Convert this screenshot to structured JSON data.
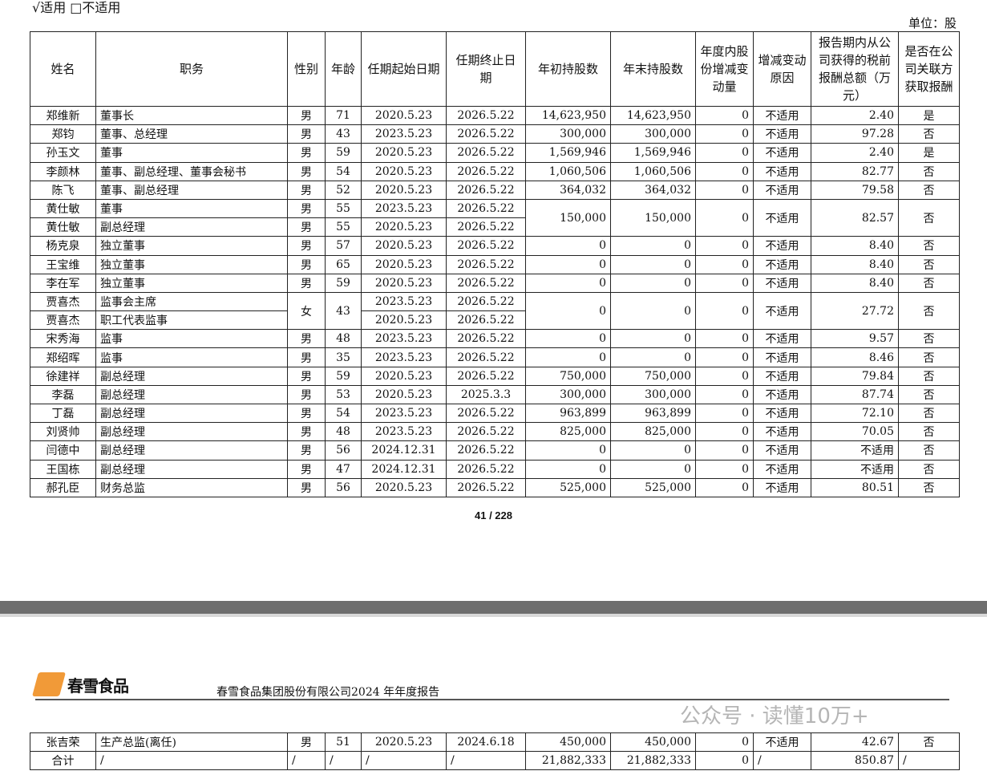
{
  "applicability": "√适用 □不适用",
  "unit": "单位：股",
  "headers": [
    "姓名",
    "职务",
    "性别",
    "年龄",
    "任期起始日期",
    "任期终止日期",
    "年初持股数",
    "年末持股数",
    "年度内股份增减变动量",
    "增减变动原因",
    "报告期内从公司获得的税前报酬总额（万元）",
    "是否在公司关联方获取报酬"
  ],
  "rows": [
    [
      "郑维新",
      "董事长",
      "男",
      "71",
      "2020.5.23",
      "2026.5.22",
      "14,623,950",
      "14,623,950",
      "0",
      "不适用",
      "2.40",
      "是"
    ],
    [
      "郑钧",
      "董事、总经理",
      "男",
      "43",
      "2023.5.23",
      "2026.5.22",
      "300,000",
      "300,000",
      "0",
      "不适用",
      "97.28",
      "否"
    ],
    [
      "孙玉文",
      "董事",
      "男",
      "59",
      "2020.5.23",
      "2026.5.22",
      "1,569,946",
      "1,569,946",
      "0",
      "不适用",
      "2.40",
      "是"
    ],
    [
      "李颜林",
      "董事、副总经理、董事会秘书",
      "男",
      "54",
      "2020.5.23",
      "2026.5.22",
      "1,060,506",
      "1,060,506",
      "0",
      "不适用",
      "82.77",
      "否"
    ],
    [
      "陈飞",
      "董事、副总经理",
      "男",
      "52",
      "2020.5.23",
      "2026.5.22",
      "364,032",
      "364,032",
      "0",
      "不适用",
      "79.58",
      "否"
    ],
    [
      "黄仕敏",
      "董事",
      "男",
      "55",
      "2023.5.23",
      "2026.5.22",
      "150,000",
      "150,000",
      "0",
      "不适用",
      "82.57",
      "否"
    ],
    [
      "黄仕敏",
      "副总经理",
      "男",
      "55",
      "2020.5.23",
      "2026.5.22",
      null,
      null,
      null,
      null,
      null,
      null
    ],
    [
      "杨克泉",
      "独立董事",
      "男",
      "57",
      "2020.5.23",
      "2026.5.22",
      "0",
      "0",
      "0",
      "不适用",
      "8.40",
      "否"
    ],
    [
      "王宝维",
      "独立董事",
      "男",
      "65",
      "2020.5.23",
      "2026.5.22",
      "0",
      "0",
      "0",
      "不适用",
      "8.40",
      "否"
    ],
    [
      "李在军",
      "独立董事",
      "男",
      "59",
      "2020.5.23",
      "2026.5.22",
      "0",
      "0",
      "0",
      "不适用",
      "8.40",
      "否"
    ],
    [
      "贾喜杰",
      "监事会主席",
      "女",
      "43",
      "2023.5.23",
      "2026.5.22",
      "0",
      "0",
      "0",
      "不适用",
      "27.72",
      "否"
    ],
    [
      "贾喜杰",
      "职工代表监事",
      null,
      null,
      "2020.5.23",
      "2026.5.22",
      null,
      null,
      null,
      null,
      null,
      null
    ],
    [
      "宋秀海",
      "监事",
      "男",
      "48",
      "2023.5.23",
      "2026.5.22",
      "0",
      "0",
      "0",
      "不适用",
      "9.57",
      "否"
    ],
    [
      "郑绍晖",
      "监事",
      "男",
      "35",
      "2023.5.23",
      "2026.5.22",
      "0",
      "0",
      "0",
      "不适用",
      "8.46",
      "否"
    ],
    [
      "徐建祥",
      "副总经理",
      "男",
      "59",
      "2020.5.23",
      "2026.5.22",
      "750,000",
      "750,000",
      "0",
      "不适用",
      "79.84",
      "否"
    ],
    [
      "李磊",
      "副总经理",
      "男",
      "53",
      "2020.5.23",
      "2025.3.3",
      "300,000",
      "300,000",
      "0",
      "不适用",
      "87.74",
      "否"
    ],
    [
      "丁磊",
      "副总经理",
      "男",
      "54",
      "2023.5.23",
      "2026.5.22",
      "963,899",
      "963,899",
      "0",
      "不适用",
      "72.10",
      "否"
    ],
    [
      "刘贤帅",
      "副总经理",
      "男",
      "48",
      "2023.5.23",
      "2026.5.22",
      "825,000",
      "825,000",
      "0",
      "不适用",
      "70.05",
      "否"
    ],
    [
      "闫德中",
      "副总经理",
      "男",
      "56",
      "2024.12.31",
      "2026.5.22",
      "0",
      "0",
      "0",
      "不适用",
      "不适用",
      "否"
    ],
    [
      "王国栋",
      "副总经理",
      "男",
      "47",
      "2024.12.31",
      "2026.5.22",
      "0",
      "0",
      "0",
      "不适用",
      "不适用",
      "否"
    ],
    [
      "郝孔臣",
      "财务总监",
      "男",
      "56",
      "2020.5.23",
      "2026.5.22",
      "525,000",
      "525,000",
      "0",
      "不适用",
      "80.51",
      "否"
    ]
  ],
  "page_number": "41 / 228",
  "logo_text": "春雪食品",
  "report_title": "春雪食品集团股份有限公司2024 年年度报告",
  "rows2": [
    [
      "张吉荣",
      "生产总监(离任)",
      "男",
      "51",
      "2020.5.23",
      "2024.6.18",
      "450,000",
      "450,000",
      "0",
      "不适用",
      "42.67",
      "否"
    ],
    [
      "合计",
      "/",
      "/",
      "/",
      "/",
      "/",
      "21,882,333",
      "21,882,333",
      "0",
      "/",
      "850.87",
      "/"
    ]
  ],
  "watermark": "公众号 · 读懂10万+"
}
